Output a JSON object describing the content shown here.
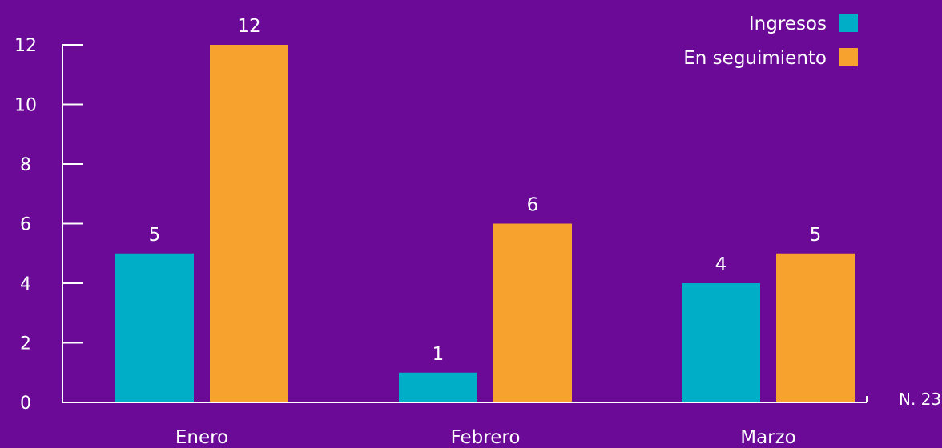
{
  "chart_data": {
    "type": "bar",
    "title": "",
    "xlabel": "",
    "ylabel": "",
    "categories": [
      "Enero",
      "Febrero",
      "Marzo"
    ],
    "series": [
      {
        "name": "Ingresos",
        "values": [
          5,
          1,
          4
        ],
        "color": "#00aec7"
      },
      {
        "name": "En seguimiento",
        "values": [
          12,
          6,
          5
        ],
        "color": "#f7a12f"
      }
    ],
    "ylim": [
      0,
      12
    ],
    "yticks": [
      0,
      2,
      4,
      6,
      8,
      10,
      12
    ],
    "grid": false,
    "legend_position": "top-right",
    "note": "N. 23",
    "background": "#6a0a96",
    "axis_color": "#ffffff"
  }
}
